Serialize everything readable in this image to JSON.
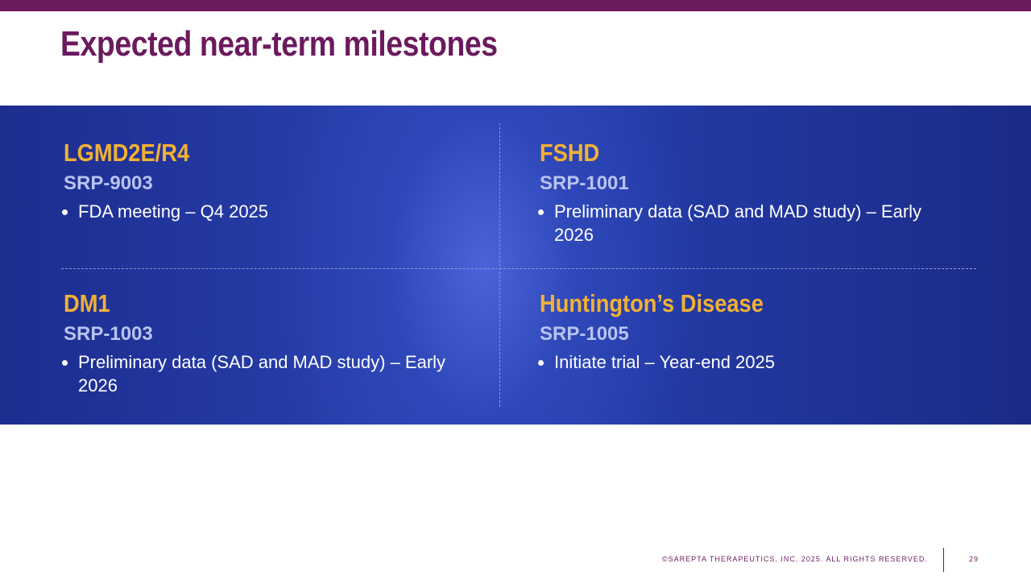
{
  "header": {
    "title": "Expected near-term milestones"
  },
  "quadrants": [
    {
      "indication": "LGMD2E/R4",
      "program": "SRP-9003",
      "items": [
        "FDA meeting – Q4 2025"
      ]
    },
    {
      "indication": "FSHD",
      "program": "SRP-1001",
      "items": [
        "Preliminary data (SAD and MAD study) – Early 2026"
      ]
    },
    {
      "indication": "DM1",
      "program": "SRP-1003",
      "items": [
        "Preliminary data (SAD and MAD study) – Early 2026"
      ]
    },
    {
      "indication": "Huntington’s Disease",
      "program": "SRP-1005",
      "items": [
        "Initiate trial – Year-end 2025"
      ]
    }
  ],
  "footer": {
    "copyright": "©SAREPTA THERAPEUTICS, INC. 2025.  ALL RIGHTS RESERVED.",
    "page": "29"
  }
}
